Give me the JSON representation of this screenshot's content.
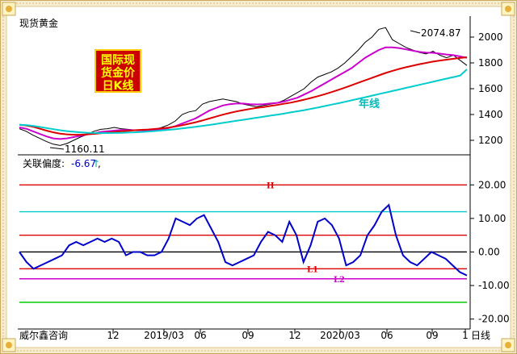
{
  "instrument": "现货黄金",
  "badge": {
    "line1": "国际现",
    "line2": "货金价",
    "line3": "日K线"
  },
  "annotations": {
    "high": "2074.87",
    "low": "1160.11",
    "ma_label": "年线"
  },
  "indicator": {
    "label": "关联偏度:",
    "value": "-6.67",
    "arrow": "↑",
    "suffix": ","
  },
  "footer": {
    "source": "威尔鑫咨询",
    "period": "日线"
  },
  "colors": {
    "ma_fast": "#000000",
    "ma_mid": "#cc00cc",
    "ma_long": "#dd0000",
    "ma_year": "#00cccc",
    "osc": "#0000cc"
  },
  "chart_data": [
    {
      "type": "line",
      "title": "现货黄金",
      "x_tick_labels": [
        "12",
        "2019/03",
        "06",
        "09",
        "12",
        "2020/03",
        "06",
        "09",
        "1"
      ],
      "ylim": [
        1100,
        2100
      ],
      "y_ticks": [
        1200,
        1400,
        1600,
        1800,
        2000
      ],
      "series": [
        {
          "name": "price",
          "values": [
            1290,
            1270,
            1240,
            1215,
            1190,
            1170,
            1160,
            1175,
            1200,
            1225,
            1245,
            1270,
            1285,
            1290,
            1300,
            1290,
            1285,
            1280,
            1275,
            1270,
            1285,
            1300,
            1320,
            1350,
            1400,
            1420,
            1430,
            1480,
            1500,
            1510,
            1520,
            1510,
            1500,
            1480,
            1470,
            1460,
            1470,
            1480,
            1490,
            1510,
            1540,
            1570,
            1600,
            1650,
            1690,
            1710,
            1730,
            1760,
            1800,
            1850,
            1900,
            1960,
            2000,
            2060,
            2074,
            1980,
            1950,
            1920,
            1900,
            1880,
            1870,
            1890,
            1860,
            1840,
            1860,
            1820,
            1780
          ]
        },
        {
          "name": "ma_mid",
          "values": [
            1300,
            1290,
            1270,
            1250,
            1230,
            1215,
            1210,
            1215,
            1225,
            1235,
            1245,
            1255,
            1265,
            1270,
            1275,
            1280,
            1280,
            1278,
            1276,
            1275,
            1278,
            1285,
            1295,
            1310,
            1330,
            1350,
            1370,
            1400,
            1430,
            1450,
            1470,
            1480,
            1485,
            1485,
            1480,
            1478,
            1480,
            1485,
            1490,
            1500,
            1515,
            1530,
            1555,
            1580,
            1610,
            1640,
            1670,
            1700,
            1730,
            1760,
            1800,
            1840,
            1870,
            1900,
            1920,
            1920,
            1915,
            1905,
            1895,
            1885,
            1880,
            1878,
            1872,
            1865,
            1860,
            1850,
            1840
          ]
        },
        {
          "name": "ma_long",
          "values": [
            1320,
            1315,
            1305,
            1290,
            1275,
            1262,
            1252,
            1246,
            1243,
            1243,
            1246,
            1250,
            1255,
            1260,
            1265,
            1270,
            1274,
            1278,
            1281,
            1284,
            1288,
            1293,
            1299,
            1307,
            1317,
            1328,
            1340,
            1354,
            1369,
            1384,
            1399,
            1412,
            1424,
            1434,
            1443,
            1451,
            1458,
            1466,
            1474,
            1483,
            1492,
            1503,
            1515,
            1528,
            1542,
            1557,
            1573,
            1590,
            1608,
            1627,
            1646,
            1665,
            1684,
            1703,
            1722,
            1738,
            1753,
            1766,
            1778,
            1790,
            1800,
            1810,
            1818,
            1825,
            1832,
            1838,
            1844
          ]
        },
        {
          "name": "ma_year",
          "values": [
            1320,
            1318,
            1312,
            1304,
            1295,
            1286,
            1278,
            1271,
            1266,
            1262,
            1259,
            1257,
            1256,
            1256,
            1257,
            1258,
            1260,
            1262,
            1265,
            1268,
            1272,
            1276,
            1281,
            1286,
            1292,
            1298,
            1305,
            1312,
            1319,
            1327,
            1335,
            1343,
            1351,
            1359,
            1367,
            1375,
            1383,
            1391,
            1399,
            1407,
            1416,
            1425,
            1434,
            1444,
            1454,
            1465,
            1476,
            1487,
            1498,
            1510,
            1522,
            1534,
            1546,
            1558,
            1570,
            1582,
            1594,
            1606,
            1618,
            1630,
            1642,
            1654,
            1666,
            1678,
            1690,
            1702,
            1750
          ]
        }
      ]
    },
    {
      "type": "line",
      "title": "关联偏度",
      "ylim": [
        -22,
        28
      ],
      "y_ticks": [
        -20.0,
        -10.0,
        0.0,
        10.0,
        20.0
      ],
      "reference_lines": [
        {
          "label": "H",
          "value": 20,
          "color": "#dd0000"
        },
        {
          "label": "",
          "value": 12,
          "color": "#00cccc"
        },
        {
          "label": "",
          "value": 5,
          "color": "#dd0000"
        },
        {
          "label": "",
          "value": 0,
          "color": "#000000"
        },
        {
          "label": "L1",
          "value": -5,
          "color": "#dd0000"
        },
        {
          "label": "L2",
          "value": -8,
          "color": "#cc00cc"
        },
        {
          "label": "",
          "value": -15,
          "color": "#00cc00"
        }
      ],
      "series": [
        {
          "name": "skew",
          "values": [
            0,
            -3,
            -5,
            -4,
            -3,
            -2,
            -1,
            2,
            3,
            2,
            3,
            4,
            3,
            4,
            3,
            -1,
            0,
            0,
            -1,
            -1,
            0,
            4,
            10,
            9,
            8,
            10,
            11,
            7,
            3,
            -3,
            -4,
            -3,
            -2,
            -1,
            3,
            6,
            5,
            3,
            9,
            5,
            -3,
            2,
            9,
            10,
            8,
            4,
            -4,
            -3,
            -1,
            5,
            8,
            12,
            14,
            5,
            -1,
            -3,
            -4,
            -2,
            0,
            -1,
            -2,
            -4,
            -6,
            -7
          ]
        }
      ]
    }
  ]
}
